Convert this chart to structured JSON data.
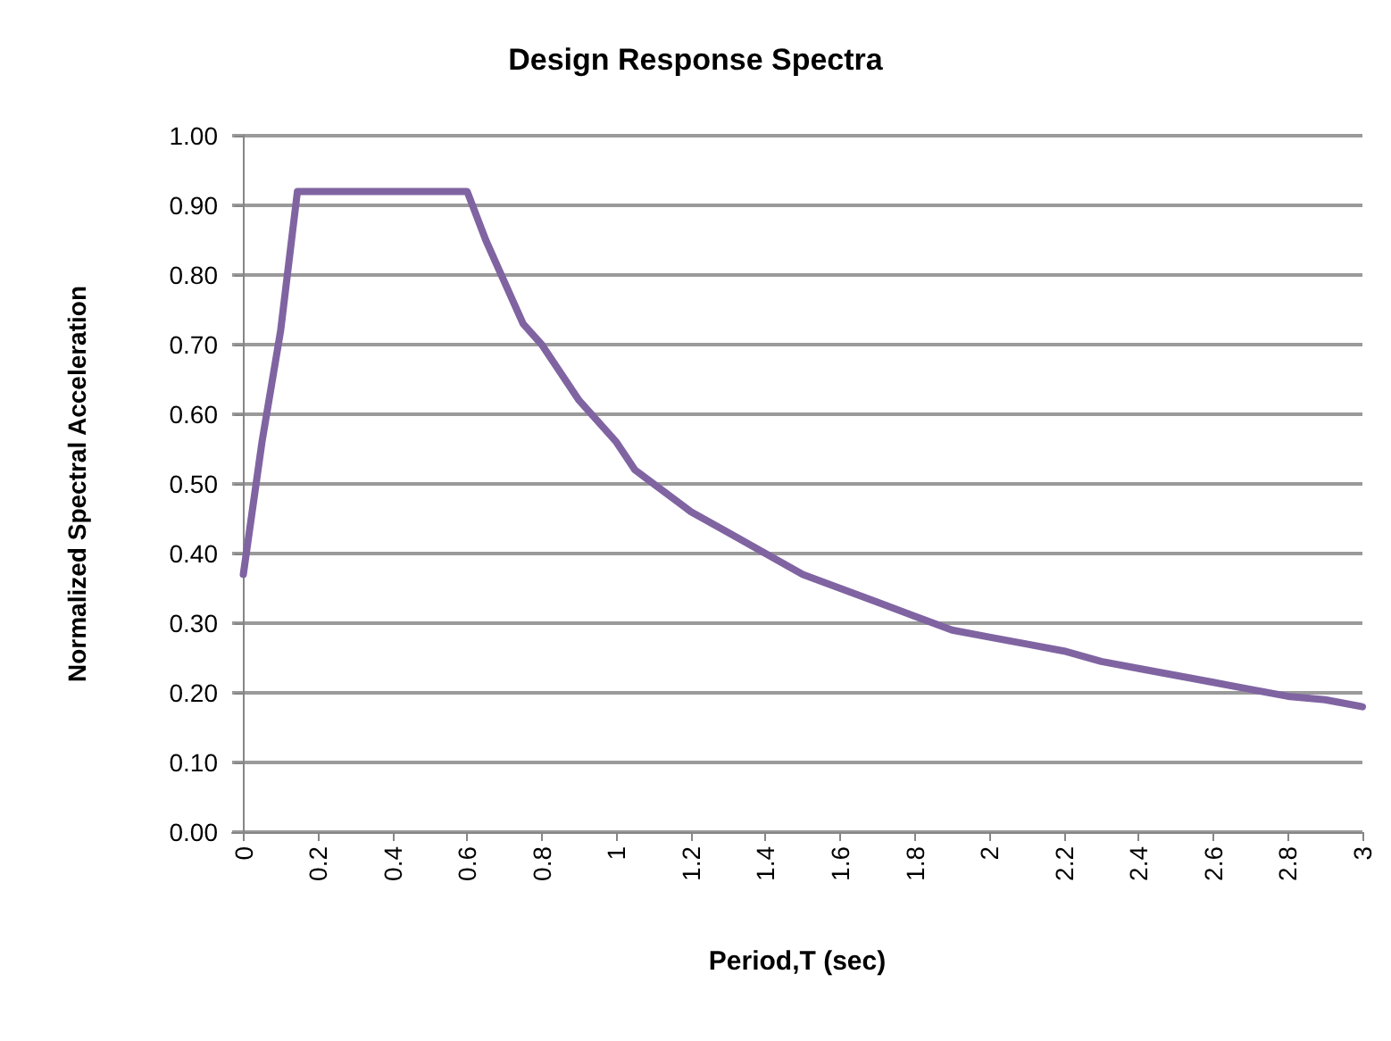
{
  "chart_data": {
    "type": "line",
    "title": "Design Response Spectra",
    "xlabel": "Period,T (sec)",
    "ylabel": "Normalized Spectral Acceleration",
    "x": [
      0,
      0.05,
      0.1,
      0.145,
      0.6,
      0.65,
      0.7,
      0.75,
      0.8,
      0.9,
      1.0,
      1.05,
      1.1,
      1.2,
      1.3,
      1.4,
      1.5,
      1.6,
      1.7,
      1.8,
      1.9,
      2.0,
      2.1,
      2.2,
      2.3,
      2.4,
      2.5,
      2.6,
      2.7,
      2.8,
      2.9,
      3.0
    ],
    "series": [
      {
        "color": "#8064a2",
        "values": [
          0.37,
          0.56,
          0.72,
          0.92,
          0.92,
          0.85,
          0.79,
          0.73,
          0.7,
          0.62,
          0.56,
          0.52,
          0.5,
          0.46,
          0.43,
          0.4,
          0.37,
          0.35,
          0.33,
          0.31,
          0.29,
          0.28,
          0.27,
          0.26,
          0.245,
          0.235,
          0.225,
          0.215,
          0.205,
          0.195,
          0.19,
          0.18
        ]
      }
    ],
    "xlim": [
      -0.03,
      3
    ],
    "xticks": [
      0,
      0.2,
      0.4,
      0.6,
      0.8,
      1,
      1.2,
      1.4,
      1.6,
      1.8,
      2,
      2.2,
      2.4,
      2.6,
      2.8,
      3
    ],
    "ylim": [
      0,
      1
    ],
    "yticks": [
      {
        "value": 0,
        "label": "0.00"
      },
      {
        "value": 0.1,
        "label": "0.10"
      },
      {
        "value": 0.2,
        "label": "0.20"
      },
      {
        "value": 0.3,
        "label": "0.30"
      },
      {
        "value": 0.4,
        "label": "0.40"
      },
      {
        "value": 0.5,
        "label": "0.50"
      },
      {
        "value": 0.6,
        "label": "0.60"
      },
      {
        "value": 0.7,
        "label": "0.70"
      },
      {
        "value": 0.8,
        "label": "0.80"
      },
      {
        "value": 0.9,
        "label": "0.90"
      },
      {
        "value": 1,
        "label": "1.00"
      }
    ],
    "grid": "y",
    "marker": "none",
    "line_style": "solid"
  }
}
